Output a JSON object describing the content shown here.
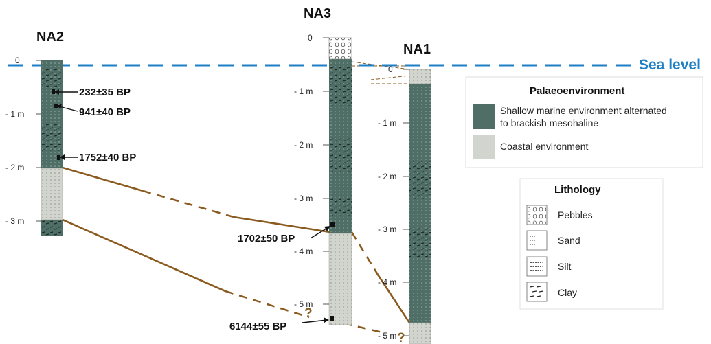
{
  "cores": [
    {
      "id": "NA2",
      "name": "NA2",
      "ticks": [
        "0",
        "- 1 m",
        "- 2 m",
        "- 3 m"
      ]
    },
    {
      "id": "NA3",
      "name": "NA3",
      "ticks": [
        "0",
        "- 1 m",
        "- 2 m",
        "- 3 m",
        "- 4 m",
        "- 5 m"
      ]
    },
    {
      "id": "NA1",
      "name": "NA1",
      "ticks": [
        "0",
        "- 1 m",
        "- 2 m",
        "- 3 m",
        "- 4 m",
        "- 5 m"
      ]
    }
  ],
  "sea_level": {
    "label": "Sea level",
    "color": "#1f7fc4"
  },
  "dates": {
    "na2_1": "232±35 BP",
    "na2_2": "941±40 BP",
    "na2_3": "1752±40 BP",
    "na3_1": "1702±50 BP",
    "na3_2": "6144±55 BP"
  },
  "correlation": {
    "uncertain_mark": "?",
    "color": "#8a5a1e"
  },
  "legend_env": {
    "title": "Palaeoenvironment",
    "items": [
      {
        "line1": "Shallow marine environment alternated",
        "line2": "to brackish mesohaline",
        "color": "#4e6e66"
      },
      {
        "line1": "Coastal environment",
        "line2": "",
        "color": "#d2d5cd"
      }
    ]
  },
  "legend_lith": {
    "title": "Lithology",
    "items": [
      {
        "label": "Pebbles",
        "pattern": "pebbles-icon"
      },
      {
        "label": "Sand",
        "pattern": "sand-icon"
      },
      {
        "label": "Silt",
        "pattern": "silt-icon"
      },
      {
        "label": "Clay",
        "pattern": "clay-icon"
      }
    ]
  }
}
